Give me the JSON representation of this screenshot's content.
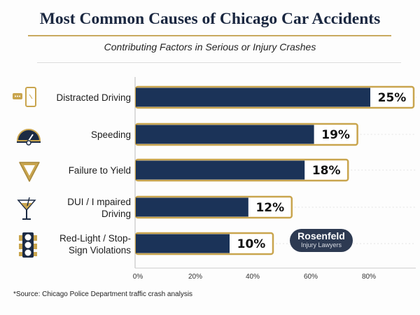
{
  "header": {
    "title": "Most Common Causes of Chicago Car Accidents",
    "subtitle": "Contributing Factors in Serious or Injury Crashes"
  },
  "chart_data": {
    "type": "bar",
    "orientation": "horizontal",
    "categories": [
      "Distracted Driving",
      "Speeding",
      "Failure to Yield",
      "DUI / I mpaired Driving",
      "Red-Light / Stop-Sign Violations"
    ],
    "category_lines": [
      [
        "Distracted Driving"
      ],
      [
        "Speeding"
      ],
      [
        "Failure to Yield"
      ],
      [
        "DUI / I mpaired",
        "Driving"
      ],
      [
        "Red-Light / Stop-",
        "Sign Violations"
      ]
    ],
    "values": [
      25,
      19,
      18,
      12,
      10
    ],
    "data_labels": [
      "25%",
      "19%",
      "18%",
      "12%",
      "10%"
    ],
    "icons": [
      "phone-chat-icon",
      "speedometer-icon",
      "yield-sign-icon",
      "cocktail-glass-icon",
      "traffic-light-icon"
    ],
    "x_ticks": [
      "0%",
      "20%",
      "40%",
      "60%",
      "80%"
    ],
    "title": "Most Common Causes of Chicago Car Accidents",
    "xlabel": "",
    "ylabel": "",
    "grid": false,
    "colors": {
      "bar": "#1b3358",
      "border": "#c9a54e",
      "icon_gold": "#c9a54e",
      "icon_dark": "#1c2b44"
    }
  },
  "logo": {
    "line1": "Rosenfeld",
    "line2": "Injury Lawyers"
  },
  "footnote": "*Source: Chicago Police Department traffic crash analysis"
}
